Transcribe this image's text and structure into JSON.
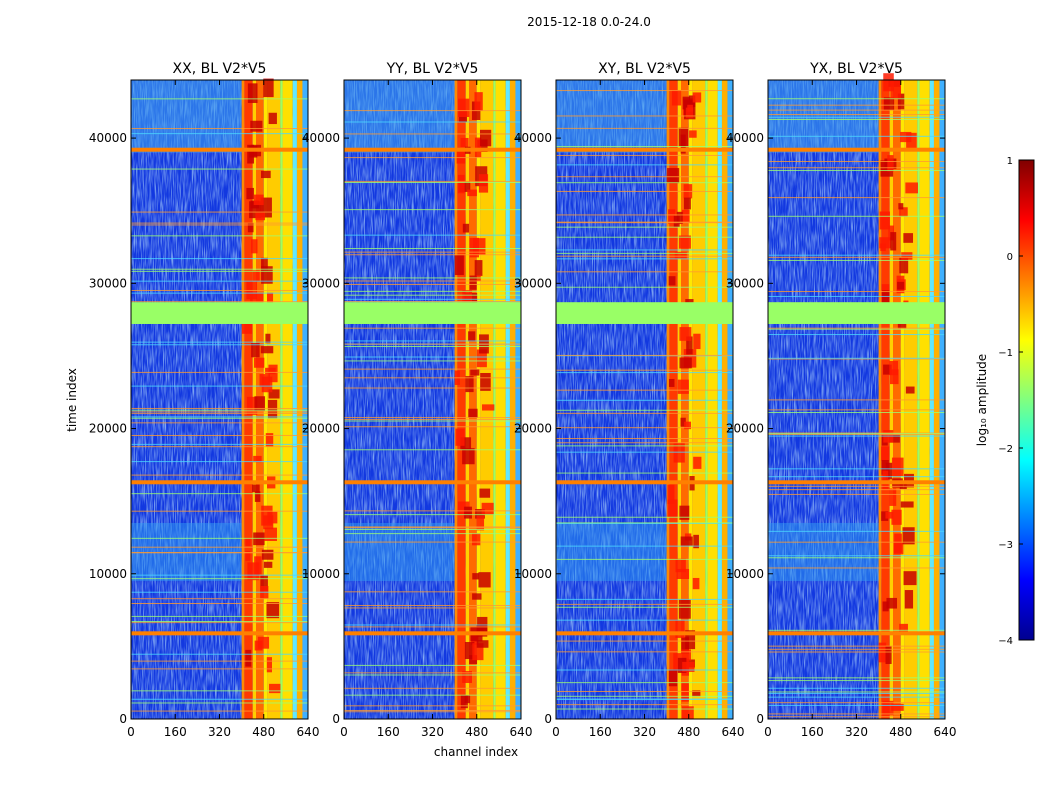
{
  "figure": {
    "suptitle": "2015-12-18 0.0-24.0"
  },
  "chart_data": [
    {
      "type": "heatmap",
      "title": "XX, BL V2*V5",
      "xlabel": "",
      "ylabel": "time index",
      "xlim": [
        0,
        640
      ],
      "ylim": [
        0,
        44000
      ],
      "xticks": [
        "0",
        "160",
        "320",
        "480",
        "640"
      ],
      "yticks": [
        "0",
        "10000",
        "20000",
        "30000",
        "40000"
      ],
      "flagged_time_ranges": [
        [
          27200,
          28700
        ]
      ],
      "high_amplitude_channel_range": [
        400,
        640
      ]
    },
    {
      "type": "heatmap",
      "title": "YY, BL V2*V5",
      "xlabel": "channel index",
      "ylabel": "",
      "xlim": [
        0,
        640
      ],
      "ylim": [
        0,
        44000
      ],
      "xticks": [
        "0",
        "160",
        "320",
        "480",
        "640"
      ],
      "yticks": [
        "0",
        "10000",
        "20000",
        "30000",
        "40000"
      ],
      "flagged_time_ranges": [
        [
          27200,
          28700
        ]
      ],
      "high_amplitude_channel_range": [
        400,
        640
      ]
    },
    {
      "type": "heatmap",
      "title": "XY, BL V2*V5",
      "xlabel": "",
      "ylabel": "",
      "xlim": [
        0,
        640
      ],
      "ylim": [
        0,
        44000
      ],
      "xticks": [
        "0",
        "160",
        "320",
        "480",
        "640"
      ],
      "yticks": [
        "0",
        "10000",
        "20000",
        "30000",
        "40000"
      ],
      "flagged_time_ranges": [
        [
          27200,
          28700
        ]
      ],
      "high_amplitude_channel_range": [
        400,
        640
      ]
    },
    {
      "type": "heatmap",
      "title": "YX, BL V2*V5",
      "xlabel": "",
      "ylabel": "",
      "xlim": [
        0,
        640
      ],
      "ylim": [
        0,
        44000
      ],
      "xticks": [
        "0",
        "160",
        "320",
        "480",
        "640"
      ],
      "yticks": [
        "0",
        "10000",
        "20000",
        "30000",
        "40000"
      ],
      "flagged_time_ranges": [
        [
          27200,
          28700
        ]
      ],
      "high_amplitude_channel_range": [
        400,
        640
      ]
    }
  ],
  "colorbar": {
    "label": "log₁₀ amplitude",
    "range": [
      -4,
      1
    ],
    "ticks": [
      "1",
      "0",
      "−1",
      "−2",
      "−3",
      "−4"
    ],
    "colormap": [
      "#00008f",
      "#0000ff",
      "#0080ff",
      "#00ffff",
      "#80ff80",
      "#ffff00",
      "#ff8000",
      "#ff0000",
      "#800000"
    ]
  }
}
